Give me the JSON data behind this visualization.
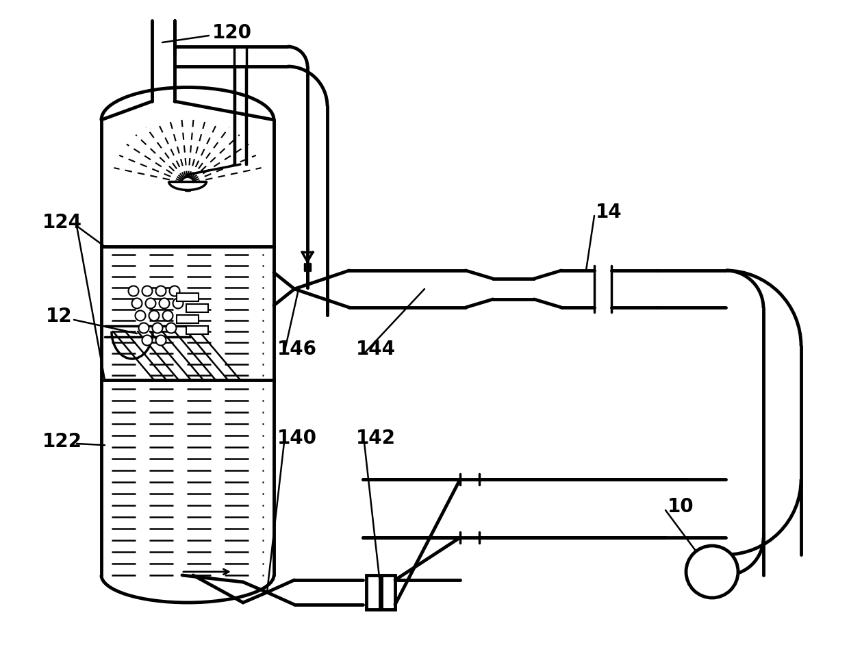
{
  "bg_color": "#ffffff",
  "lc": "#000000",
  "tlw": 3.5,
  "mlw": 2.5,
  "slw": 1.8,
  "label_fs": 20,
  "label_fw": "bold"
}
